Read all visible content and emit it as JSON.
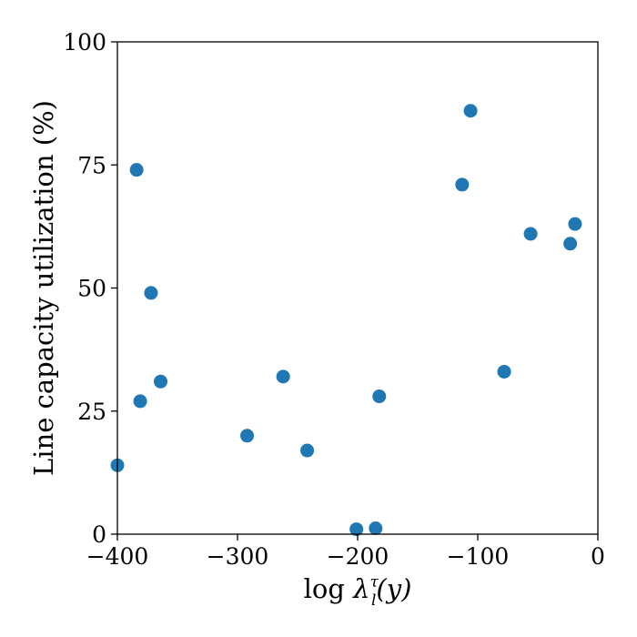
{
  "chart_data": {
    "type": "scatter",
    "xlabel_main": "log ",
    "xlabel_symbol": "λ",
    "xlabel_sup": "τ",
    "xlabel_sub": "l",
    "xlabel_arg": "(y)",
    "ylabel": "Line capacity utilization (%)",
    "xlim": [
      -400,
      0
    ],
    "ylim": [
      0,
      100
    ],
    "x_ticks": [
      -400,
      -300,
      -200,
      -100,
      0
    ],
    "x_tick_labels": [
      "−400",
      "−300",
      "−200",
      "−100",
      "0"
    ],
    "y_ticks": [
      0,
      25,
      50,
      75,
      100
    ],
    "y_tick_labels": [
      "0",
      "25",
      "50",
      "75",
      "100"
    ],
    "grid": false,
    "marker_color": "#1f77b4",
    "series": [
      {
        "points": [
          {
            "x": -400,
            "y": 14
          },
          {
            "x": -384,
            "y": 74
          },
          {
            "x": -381,
            "y": 27
          },
          {
            "x": -372,
            "y": 49
          },
          {
            "x": -364,
            "y": 31
          },
          {
            "x": -292,
            "y": 20
          },
          {
            "x": -262,
            "y": 32
          },
          {
            "x": -242,
            "y": 17
          },
          {
            "x": -201,
            "y": 1
          },
          {
            "x": -185,
            "y": 1.2
          },
          {
            "x": -182,
            "y": 28
          },
          {
            "x": -113,
            "y": 71
          },
          {
            "x": -106,
            "y": 86
          },
          {
            "x": -78,
            "y": 33
          },
          {
            "x": -56,
            "y": 61
          },
          {
            "x": -23,
            "y": 59
          },
          {
            "x": -19,
            "y": 63
          }
        ]
      }
    ]
  }
}
